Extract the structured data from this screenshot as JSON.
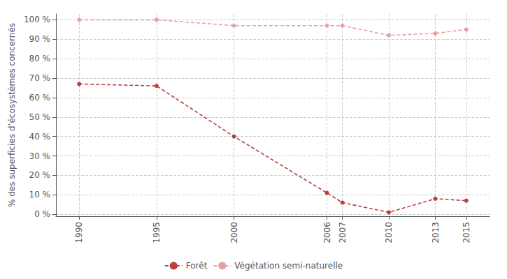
{
  "chart_data": {
    "type": "line",
    "ylabel": "% des superficies d’écosystèmes concernés",
    "x": [
      1990,
      1995,
      2000,
      2006,
      2007,
      2010,
      2013,
      2015
    ],
    "series": [
      {
        "name": "Forêt",
        "color": "#b94040",
        "values": [
          67,
          66,
          40,
          11,
          6,
          1,
          8,
          7
        ],
        "line_style": "dashed",
        "marker": "circle"
      },
      {
        "name": "Végétation semi-naturelle",
        "color": "#e8a0a0",
        "values": [
          100,
          100,
          97,
          97,
          97,
          92,
          93,
          95
        ],
        "line_style": "dashed",
        "marker": "circle"
      }
    ],
    "xlim": [
      1988.5,
      2016.5
    ],
    "xticks": [
      1990,
      1995,
      2000,
      2006,
      2007,
      2010,
      2013,
      2015
    ],
    "ylim": [
      -1,
      103
    ],
    "yticks": [
      {
        "value": 0,
        "label": "0 %"
      },
      {
        "value": 10,
        "label": "10 %"
      },
      {
        "value": 20,
        "label": "20 %"
      },
      {
        "value": 30,
        "label": "30 %"
      },
      {
        "value": 40,
        "label": "40 %"
      },
      {
        "value": 50,
        "label": "50 %"
      },
      {
        "value": 60,
        "label": "60 %"
      },
      {
        "value": 70,
        "label": "70 %"
      },
      {
        "value": 80,
        "label": "80 %"
      },
      {
        "value": 90,
        "label": "90 %"
      },
      {
        "value": 100,
        "label": "100 %"
      }
    ],
    "grid": true,
    "legend": "bottom"
  }
}
